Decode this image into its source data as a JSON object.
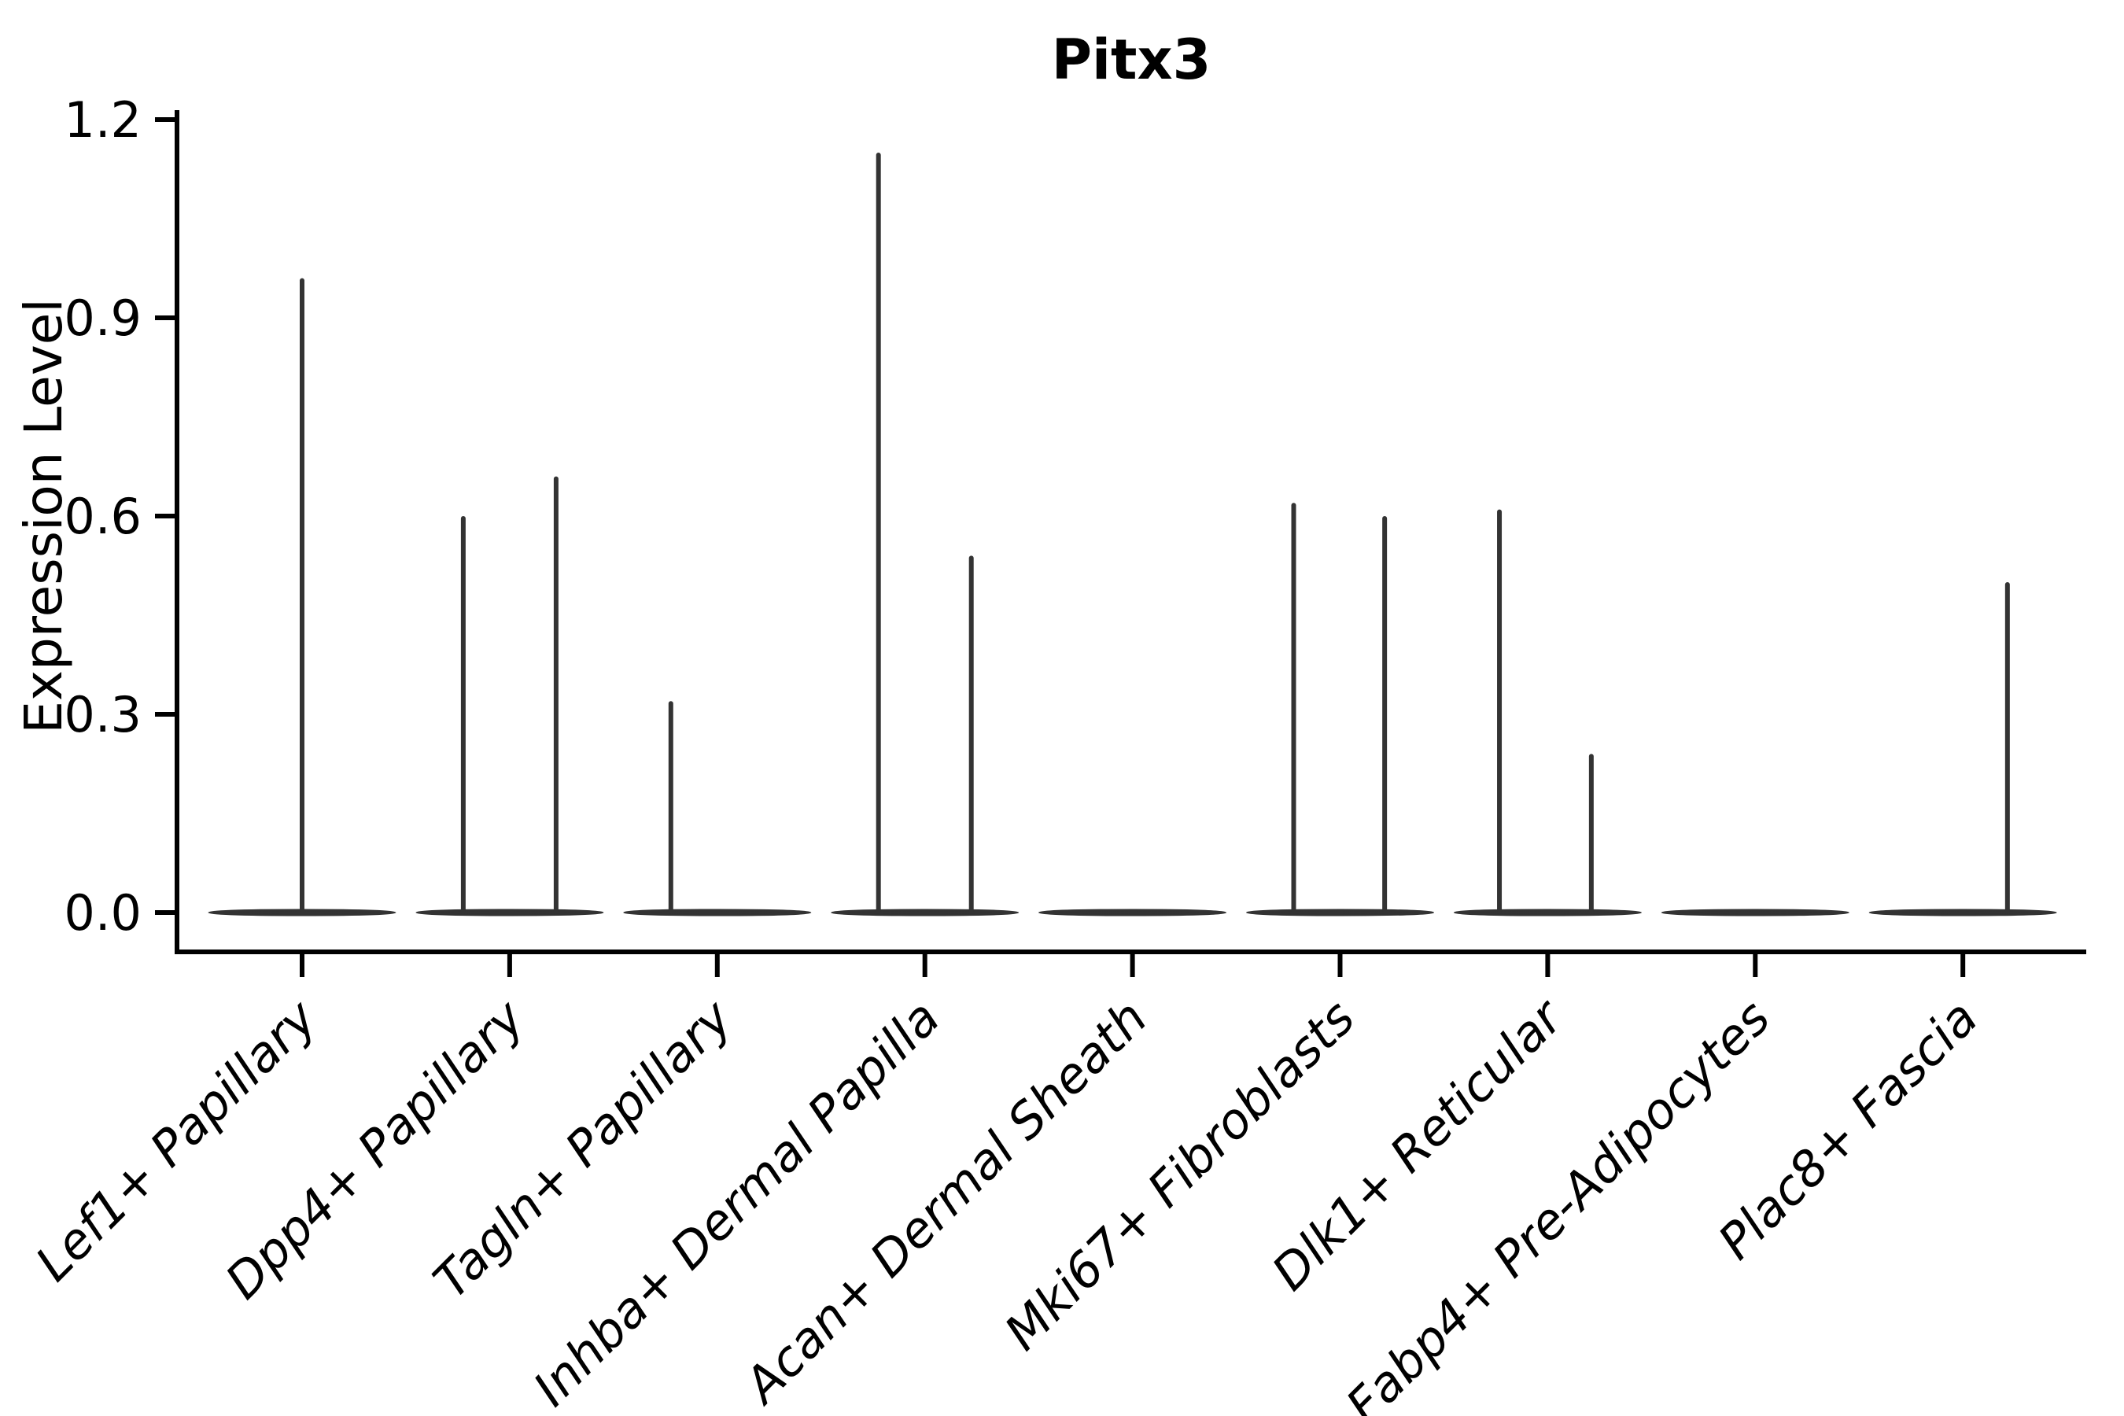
{
  "title": "Pitx3",
  "ylabel": "Expression Level",
  "colors": {
    "violin": "#333333",
    "axis": "#000000",
    "background": "#ffffff",
    "text": "#000000"
  },
  "chart_data": {
    "type": "violin",
    "title": "Pitx3",
    "xlabel": "",
    "ylabel": "Expression Level",
    "ylim": [
      -0.06,
      1.25
    ],
    "yticks": [
      0.0,
      0.3,
      0.6,
      0.9,
      1.2
    ],
    "ytick_labels": [
      "0.0",
      "0.3",
      "0.6",
      "0.9",
      "1.2"
    ],
    "grid": false,
    "legend": null,
    "x_labels_rotation_deg": 45,
    "categories": [
      "Lef1+ Papillary",
      "Dpp4+ Papillary",
      "Tagln+ Papillary",
      "Inhba+ Dermal Papilla",
      "Acan+ Dermal Sheath",
      "Mki67+ Fibroblasts",
      "Dlk1+ Reticular",
      "Fabp4+ Pre-Adipocytes",
      "Plac8+ Fascia"
    ],
    "description": "Sparse single-cell expression violins: every category shows a flattened violin body at expression 0; thin vertical density spikes mark the few expressing cells. offset_frac is the spike position within the violin as a fraction of the violin half-width.",
    "series": [
      {
        "category": "Lef1+ Papillary",
        "zero_body": true,
        "spikes": [
          {
            "offset_frac": 0.0,
            "value": 0.96
          }
        ]
      },
      {
        "category": "Dpp4+ Papillary",
        "zero_body": true,
        "spikes": [
          {
            "offset_frac": -0.5,
            "value": 0.6
          },
          {
            "offset_frac": 0.5,
            "value": 0.66
          }
        ]
      },
      {
        "category": "Tagln+ Papillary",
        "zero_body": true,
        "spikes": [
          {
            "offset_frac": -0.5,
            "value": 0.32
          }
        ]
      },
      {
        "category": "Inhba+ Dermal Papilla",
        "zero_body": true,
        "spikes": [
          {
            "offset_frac": -0.5,
            "value": 1.15
          },
          {
            "offset_frac": 0.5,
            "value": 0.54
          }
        ]
      },
      {
        "category": "Acan+ Dermal Sheath",
        "zero_body": true,
        "spikes": []
      },
      {
        "category": "Mki67+ Fibroblasts",
        "zero_body": true,
        "spikes": [
          {
            "offset_frac": -0.5,
            "value": 0.62
          },
          {
            "offset_frac": 0.48,
            "value": 0.6
          }
        ]
      },
      {
        "category": "Dlk1+ Reticular",
        "zero_body": true,
        "spikes": [
          {
            "offset_frac": -0.52,
            "value": 0.61
          },
          {
            "offset_frac": 0.47,
            "value": 0.24
          }
        ]
      },
      {
        "category": "Fabp4+ Pre-Adipocytes",
        "zero_body": true,
        "spikes": []
      },
      {
        "category": "Plac8+ Fascia",
        "zero_body": true,
        "spikes": [
          {
            "offset_frac": 0.48,
            "value": 0.5
          }
        ]
      }
    ]
  }
}
